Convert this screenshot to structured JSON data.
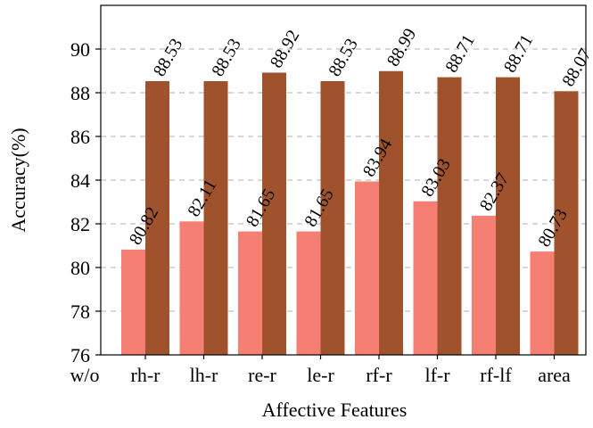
{
  "chart_data": {
    "type": "bar",
    "title": "",
    "xlabel": "Affective Features",
    "ylabel": "Accuracy(%)",
    "ylim": [
      76,
      92
    ],
    "yticks": [
      76,
      78,
      80,
      82,
      84,
      86,
      88,
      90
    ],
    "grid": "horizontal dashed",
    "legend": "none",
    "categories": [
      "rh-r",
      "lh-r",
      "re-r",
      "le-r",
      "rf-r",
      "lf-r",
      "rf-lf",
      "area"
    ],
    "extra_x_label": "w/o",
    "series": [
      {
        "values": [
          80.82,
          82.11,
          81.65,
          81.65,
          83.94,
          83.03,
          82.37,
          80.73
        ],
        "labels": [
          "80.82",
          "82.11",
          "81.65",
          "81.65",
          "83.94",
          "83.03",
          "82.37",
          "80.73"
        ],
        "color": "#F47F72"
      },
      {
        "values": [
          88.53,
          88.53,
          88.92,
          88.53,
          88.99,
          88.71,
          88.71,
          88.07
        ],
        "labels": [
          "88.53",
          "88.53",
          "88.92",
          "88.53",
          "88.99",
          "88.71",
          "88.71",
          "88.07"
        ],
        "color": "#A0522D"
      }
    ]
  }
}
